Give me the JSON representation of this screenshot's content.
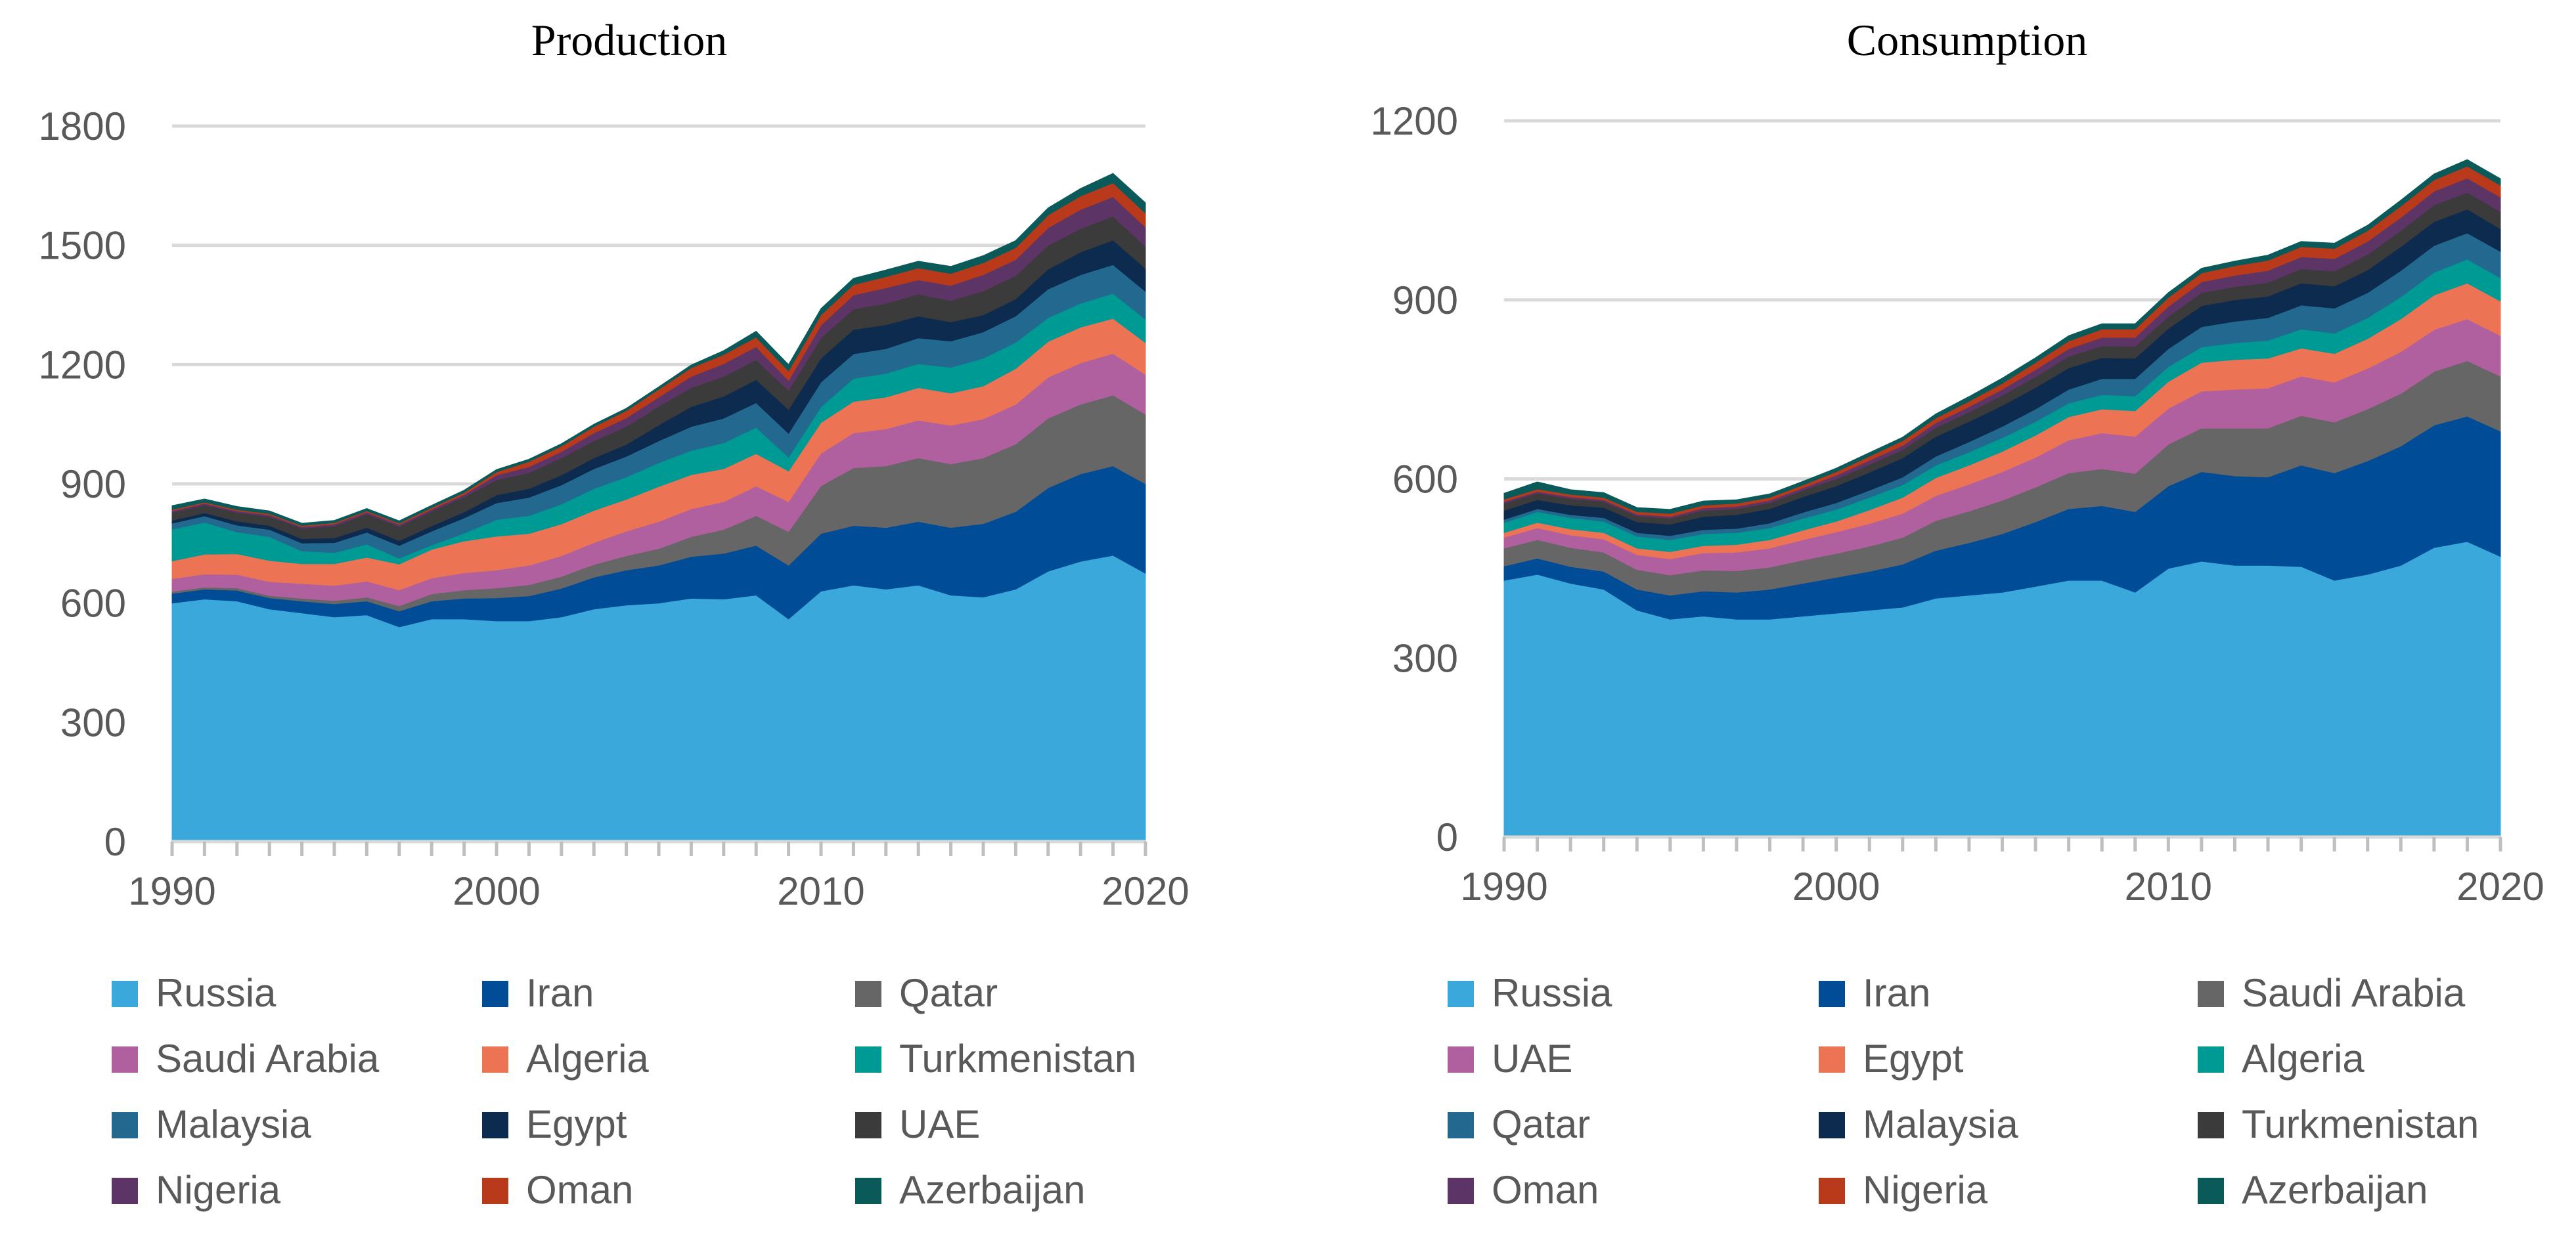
{
  "chart_data": [
    {
      "type": "area",
      "stacked": true,
      "title": "Production",
      "xlabel": "",
      "ylabel": "",
      "xlim": [
        1990,
        2020
      ],
      "ylim": [
        0,
        1800
      ],
      "xticks": [
        "1990",
        "2000",
        "2010",
        "2020"
      ],
      "yticks": [
        "0",
        "300",
        "600",
        "900",
        "1200",
        "1500",
        "1800"
      ],
      "grid": true,
      "legend_position": "bottom",
      "x": [
        1990,
        1991,
        1992,
        1993,
        1994,
        1995,
        1996,
        1997,
        1998,
        1999,
        2000,
        2001,
        2002,
        2003,
        2004,
        2005,
        2006,
        2007,
        2008,
        2009,
        2010,
        2011,
        2012,
        2013,
        2014,
        2015,
        2016,
        2017,
        2018,
        2019,
        2020
      ],
      "series": [
        {
          "name": "Russia",
          "color": "#3BA8DB",
          "values": [
            600,
            610,
            605,
            585,
            575,
            565,
            570,
            540,
            560,
            560,
            555,
            555,
            565,
            585,
            595,
            600,
            612,
            610,
            620,
            560,
            630,
            645,
            635,
            645,
            620,
            615,
            635,
            680,
            705,
            720,
            675
          ]
        },
        {
          "name": "Iran",
          "color": "#004C97",
          "values": [
            24,
            25,
            27,
            28,
            30,
            33,
            35,
            40,
            45,
            52,
            58,
            63,
            72,
            80,
            88,
            95,
            105,
            115,
            125,
            135,
            145,
            150,
            155,
            160,
            170,
            185,
            195,
            210,
            220,
            225,
            225
          ]
        },
        {
          "name": "Qatar",
          "color": "#666666",
          "values": [
            5,
            5,
            6,
            6,
            7,
            8,
            10,
            13,
            18,
            21,
            25,
            28,
            30,
            32,
            36,
            42,
            50,
            60,
            75,
            85,
            120,
            145,
            155,
            160,
            160,
            165,
            170,
            175,
            175,
            178,
            175
          ]
        },
        {
          "name": "Saudi Arabia",
          "color": "#B0609E",
          "values": [
            32,
            33,
            34,
            35,
            37,
            38,
            40,
            40,
            40,
            43,
            45,
            49,
            52,
            55,
            62,
            68,
            70,
            70,
            74,
            75,
            82,
            88,
            93,
            95,
            97,
            98,
            100,
            103,
            104,
            105,
            100
          ]
        },
        {
          "name": "Algeria",
          "color": "#EC7454",
          "values": [
            45,
            50,
            52,
            53,
            50,
            55,
            60,
            65,
            72,
            80,
            85,
            80,
            80,
            81,
            80,
            88,
            86,
            83,
            82,
            77,
            77,
            79,
            80,
            82,
            81,
            83,
            90,
            90,
            90,
            88,
            80
          ]
        },
        {
          "name": "Turkmenistan",
          "color": "#009A94",
          "values": [
            80,
            80,
            55,
            60,
            32,
            28,
            33,
            15,
            11,
            20,
            42,
            45,
            50,
            55,
            56,
            60,
            61,
            65,
            66,
            35,
            40,
            58,
            60,
            60,
            65,
            70,
            66,
            60,
            60,
            63,
            59
          ]
        },
        {
          "name": "Malaysia",
          "color": "#23688F",
          "values": [
            15,
            16,
            17,
            18,
            20,
            25,
            30,
            32,
            35,
            38,
            42,
            46,
            48,
            50,
            52,
            55,
            60,
            62,
            62,
            60,
            62,
            62,
            62,
            65,
            66,
            66,
            66,
            72,
            72,
            72,
            70
          ]
        },
        {
          "name": "Egypt",
          "color": "#0D2A4F",
          "values": [
            7,
            8,
            10,
            10,
            11,
            12,
            12,
            12,
            13,
            15,
            20,
            22,
            25,
            27,
            30,
            40,
            50,
            55,
            58,
            60,
            60,
            61,
            60,
            55,
            48,
            43,
            43,
            50,
            57,
            62,
            58
          ]
        },
        {
          "name": "UAE",
          "color": "#3B3B3B",
          "values": [
            20,
            20,
            22,
            23,
            26,
            30,
            34,
            36,
            37,
            38,
            38,
            40,
            43,
            43,
            45,
            47,
            48,
            50,
            50,
            48,
            51,
            52,
            54,
            55,
            54,
            60,
            59,
            60,
            59,
            60,
            55
          ]
        },
        {
          "name": "Nigeria",
          "color": "#5C3566",
          "values": [
            4,
            4,
            4,
            4,
            4,
            5,
            5,
            5,
            5,
            6,
            12,
            15,
            16,
            20,
            22,
            23,
            28,
            32,
            33,
            25,
            32,
            35,
            39,
            36,
            38,
            41,
            40,
            44,
            48,
            49,
            49
          ]
        },
        {
          "name": "Oman",
          "color": "#B83A1B",
          "values": [
            3,
            3,
            3,
            3,
            3,
            3,
            3,
            3,
            4,
            5,
            8,
            13,
            14,
            16,
            18,
            20,
            22,
            23,
            24,
            24,
            26,
            26,
            28,
            30,
            30,
            30,
            30,
            32,
            34,
            35,
            35
          ]
        },
        {
          "name": "Azerbaijan",
          "color": "#0B5A5A",
          "values": [
            10,
            8,
            8,
            7,
            6,
            6,
            6,
            6,
            6,
            6,
            6,
            6,
            6,
            6,
            6,
            6,
            7,
            10,
            15,
            16,
            16,
            16,
            17,
            17,
            18,
            18,
            18,
            18,
            19,
            24,
            26
          ]
        }
      ]
    },
    {
      "type": "area",
      "stacked": true,
      "title": "Consumption",
      "xlabel": "",
      "ylabel": "",
      "xlim": [
        1990,
        2020
      ],
      "ylim": [
        0,
        1200
      ],
      "xticks": [
        "1990",
        "2000",
        "2010",
        "2020"
      ],
      "yticks": [
        "0",
        "300",
        "600",
        "900",
        "1200"
      ],
      "grid": true,
      "legend_position": "bottom",
      "x": [
        1990,
        1991,
        1992,
        1993,
        1994,
        1995,
        1996,
        1997,
        1998,
        1999,
        2000,
        2001,
        2002,
        2003,
        2004,
        2005,
        2006,
        2007,
        2008,
        2009,
        2010,
        2011,
        2012,
        2013,
        2014,
        2015,
        2016,
        2017,
        2018,
        2019,
        2020
      ],
      "series": [
        {
          "name": "Russia",
          "color": "#3BA8DB",
          "values": [
            430,
            440,
            425,
            415,
            380,
            365,
            370,
            365,
            365,
            370,
            375,
            380,
            385,
            400,
            405,
            410,
            420,
            430,
            430,
            410,
            450,
            462,
            455,
            455,
            453,
            430,
            440,
            455,
            485,
            495,
            470
          ]
        },
        {
          "name": "Iran",
          "color": "#004C97",
          "values": [
            24,
            27,
            28,
            30,
            35,
            40,
            42,
            45,
            50,
            55,
            60,
            65,
            72,
            80,
            88,
            98,
            108,
            120,
            125,
            135,
            138,
            150,
            150,
            148,
            170,
            180,
            190,
            200,
            205,
            210,
            210
          ]
        },
        {
          "name": "Saudi Arabia",
          "color": "#666666",
          "values": [
            30,
            31,
            32,
            32,
            33,
            34,
            35,
            36,
            37,
            39,
            40,
            42,
            45,
            50,
            53,
            56,
            58,
            60,
            62,
            64,
            70,
            73,
            80,
            82,
            83,
            85,
            87,
            88,
            90,
            93,
            92
          ]
        },
        {
          "name": "UAE",
          "color": "#B0609E",
          "values": [
            18,
            20,
            21,
            22,
            25,
            27,
            29,
            31,
            32,
            34,
            36,
            38,
            40,
            42,
            45,
            48,
            50,
            55,
            60,
            62,
            60,
            62,
            65,
            67,
            66,
            67,
            68,
            70,
            70,
            70,
            68
          ]
        },
        {
          "name": "Egypt",
          "color": "#EC7454",
          "values": [
            8,
            9,
            10,
            11,
            11,
            12,
            12,
            13,
            14,
            16,
            18,
            23,
            27,
            30,
            32,
            34,
            37,
            39,
            40,
            43,
            45,
            48,
            50,
            50,
            47,
            48,
            50,
            55,
            58,
            60,
            58
          ]
        },
        {
          "name": "Algeria",
          "color": "#009A94",
          "values": [
            17,
            18,
            19,
            19,
            20,
            20,
            20,
            20,
            20,
            20,
            20,
            21,
            21,
            21,
            22,
            23,
            23,
            23,
            24,
            25,
            25,
            26,
            28,
            30,
            32,
            34,
            35,
            37,
            38,
            40,
            39
          ]
        },
        {
          "name": "Qatar",
          "color": "#23688F",
          "values": [
            5,
            5,
            5,
            6,
            6,
            7,
            7,
            7,
            8,
            10,
            11,
            12,
            13,
            15,
            17,
            19,
            21,
            23,
            27,
            29,
            30,
            34,
            36,
            38,
            40,
            42,
            42,
            44,
            45,
            44,
            44
          ]
        },
        {
          "name": "Malaysia",
          "color": "#0D2A4F",
          "values": [
            15,
            15,
            16,
            17,
            18,
            19,
            22,
            23,
            24,
            26,
            28,
            30,
            32,
            33,
            34,
            35,
            36,
            36,
            35,
            34,
            34,
            35,
            36,
            36,
            37,
            37,
            38,
            40,
            40,
            40,
            38
          ]
        },
        {
          "name": "Turkmenistan",
          "color": "#3B3B3B",
          "values": [
            12,
            11,
            11,
            10,
            10,
            10,
            10,
            10,
            10,
            11,
            12,
            13,
            14,
            15,
            16,
            17,
            18,
            19,
            20,
            20,
            20,
            22,
            22,
            23,
            24,
            25,
            26,
            27,
            28,
            28,
            29
          ]
        },
        {
          "name": "Oman",
          "color": "#5C3566",
          "values": [
            3,
            3,
            3,
            3,
            3,
            3,
            4,
            4,
            4,
            4,
            6,
            7,
            7,
            8,
            9,
            10,
            12,
            13,
            14,
            15,
            17,
            18,
            19,
            20,
            20,
            21,
            22,
            22,
            23,
            24,
            24
          ]
        },
        {
          "name": "Nigeria",
          "color": "#B83A1B",
          "values": [
            4,
            4,
            4,
            4,
            4,
            5,
            5,
            5,
            5,
            5,
            6,
            7,
            8,
            8,
            9,
            10,
            12,
            13,
            14,
            14,
            15,
            15,
            16,
            17,
            17,
            17,
            18,
            19,
            19,
            20,
            20
          ]
        },
        {
          "name": "Azerbaijan",
          "color": "#0B5A5A",
          "values": [
            10,
            12,
            8,
            8,
            7,
            7,
            7,
            6,
            6,
            6,
            6,
            6,
            6,
            7,
            8,
            9,
            8,
            9,
            9,
            9,
            8,
            8,
            8,
            9,
            9,
            9,
            9,
            10,
            10,
            11,
            11
          ]
        }
      ]
    }
  ]
}
